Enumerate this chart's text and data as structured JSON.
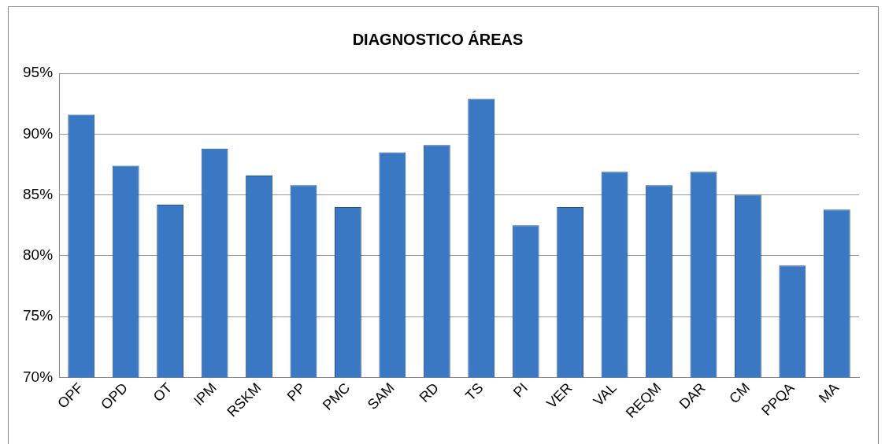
{
  "chart_data": {
    "type": "bar",
    "title": "DIAGNOSTICO ÁREAS",
    "categories": [
      "OPF",
      "OPD",
      "OT",
      "IPM",
      "RSKM",
      "PP",
      "PMC",
      "SAM",
      "RD",
      "TS",
      "PI",
      "VER",
      "VAL",
      "REQM",
      "DAR",
      "CM",
      "PPQA",
      "MA"
    ],
    "values": [
      91.6,
      87.4,
      84.2,
      88.8,
      86.6,
      85.8,
      84.0,
      88.5,
      89.1,
      92.9,
      82.5,
      84.0,
      86.9,
      85.8,
      86.9,
      85.0,
      79.2,
      83.8
    ],
    "color": "#3b78c4",
    "ylim": [
      70,
      95
    ],
    "yticks": [
      {
        "value": 70,
        "label": "70%"
      },
      {
        "value": 75,
        "label": "75%"
      },
      {
        "value": 80,
        "label": "80%"
      },
      {
        "value": 85,
        "label": "85%"
      },
      {
        "value": 90,
        "label": "90%"
      },
      {
        "value": 95,
        "label": "95%"
      }
    ],
    "grid": "y"
  }
}
